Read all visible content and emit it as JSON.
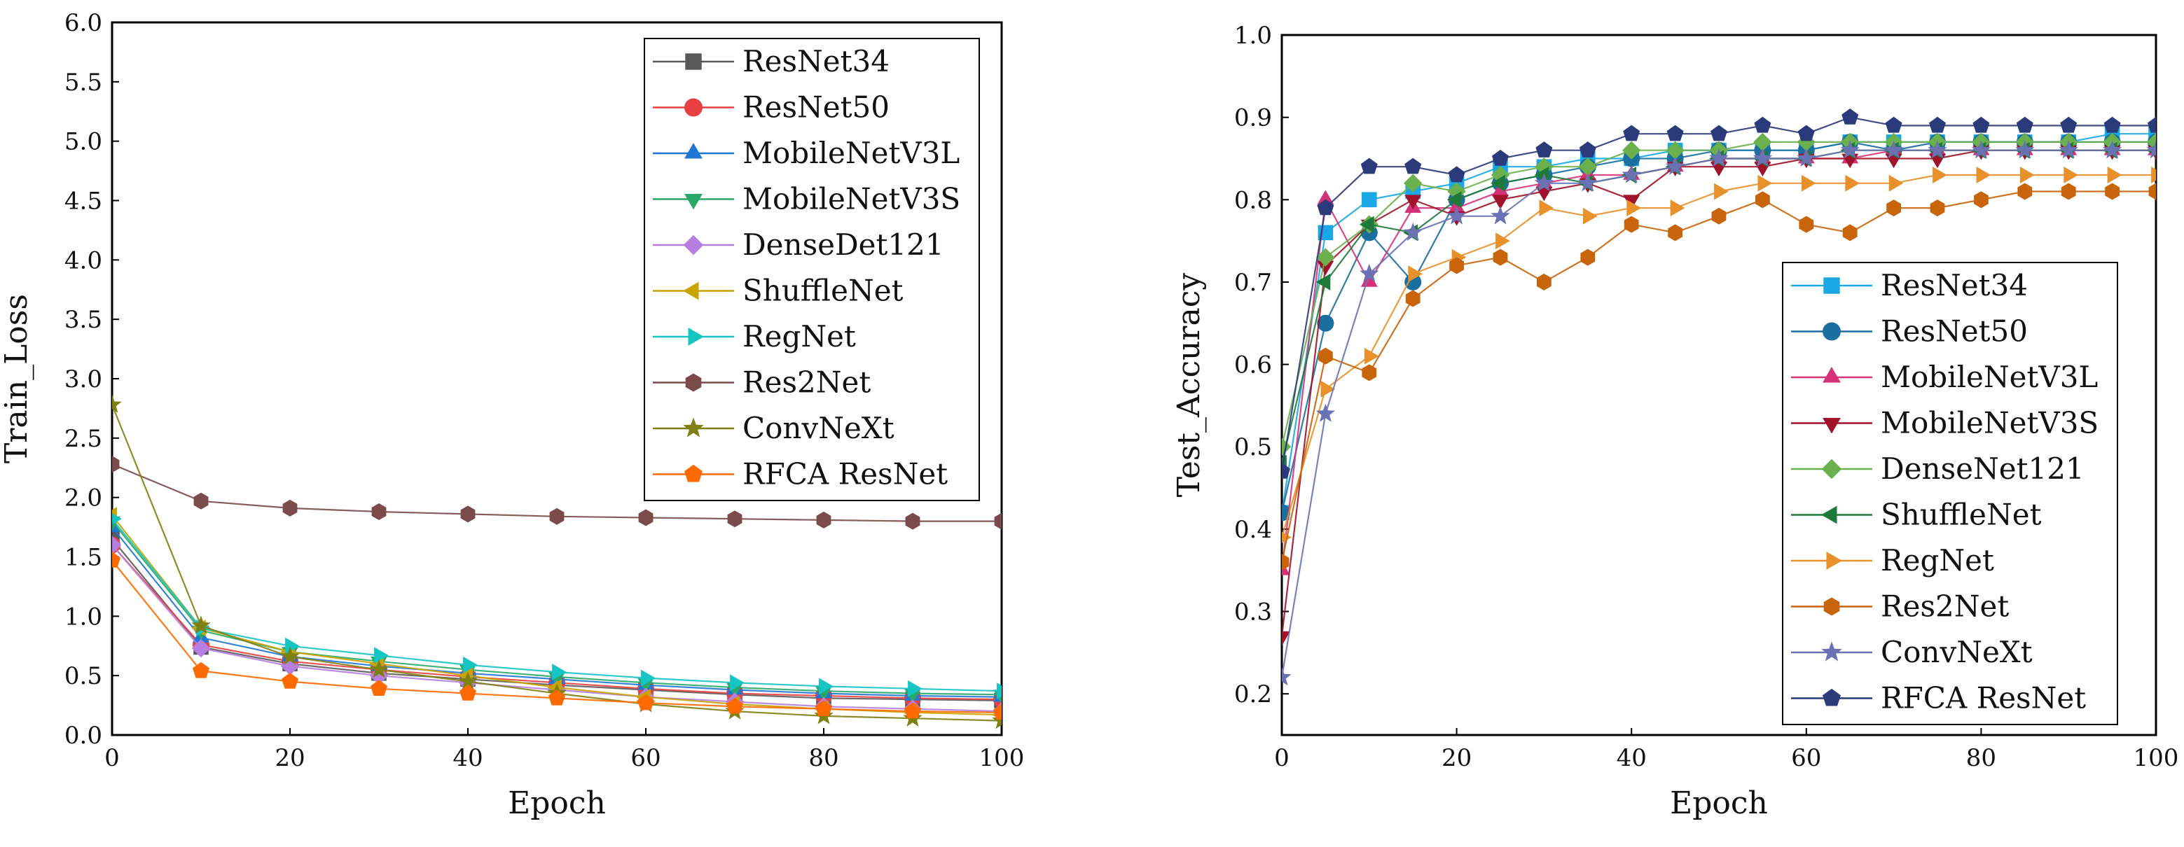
{
  "chart_data": [
    {
      "type": "line",
      "title": "",
      "xlabel": "Epoch",
      "ylabel": "Train_Loss",
      "xlim": [
        0,
        100
      ],
      "ylim": [
        0,
        6
      ],
      "xticks": [
        "0",
        "20",
        "40",
        "60",
        "80",
        "100"
      ],
      "yticks": [
        "0.0",
        "0.5",
        "1.0",
        "1.5",
        "2.0",
        "2.5",
        "3.0",
        "3.5",
        "4.0",
        "4.5",
        "5.0",
        "5.5",
        "6.0"
      ],
      "legend_position": "top-right",
      "x": [
        0,
        10,
        20,
        30,
        40,
        50,
        60,
        70,
        80,
        90,
        100
      ],
      "series": [
        {
          "name": "ResNet34",
          "color": "#595959",
          "marker": "square",
          "values": [
            1.65,
            0.74,
            0.6,
            0.52,
            0.47,
            0.42,
            0.38,
            0.34,
            0.31,
            0.3,
            0.29
          ]
        },
        {
          "name": "ResNet50",
          "color": "#e84040",
          "marker": "circle",
          "values": [
            1.6,
            0.76,
            0.62,
            0.55,
            0.49,
            0.44,
            0.39,
            0.35,
            0.33,
            0.31,
            0.3
          ]
        },
        {
          "name": "MobileNetV3L",
          "color": "#1f77d4",
          "marker": "triangle-up",
          "values": [
            1.75,
            0.82,
            0.66,
            0.58,
            0.52,
            0.47,
            0.42,
            0.38,
            0.35,
            0.33,
            0.32
          ]
        },
        {
          "name": "MobileNetV3S",
          "color": "#2aa86a",
          "marker": "triangle-down",
          "values": [
            1.8,
            0.88,
            0.7,
            0.62,
            0.55,
            0.49,
            0.44,
            0.4,
            0.37,
            0.35,
            0.34
          ]
        },
        {
          "name": "DenseDet121",
          "color": "#b57ee0",
          "marker": "diamond",
          "values": [
            1.6,
            0.73,
            0.58,
            0.5,
            0.44,
            0.38,
            0.32,
            0.28,
            0.24,
            0.22,
            0.2
          ]
        },
        {
          "name": "ShuffleNet",
          "color": "#c9a300",
          "marker": "triangle-left",
          "values": [
            1.85,
            0.9,
            0.7,
            0.6,
            0.5,
            0.4,
            0.32,
            0.26,
            0.22,
            0.19,
            0.17
          ]
        },
        {
          "name": "RegNet",
          "color": "#17c4c4",
          "marker": "triangle-right",
          "values": [
            1.82,
            0.9,
            0.75,
            0.67,
            0.59,
            0.53,
            0.48,
            0.44,
            0.41,
            0.39,
            0.37
          ]
        },
        {
          "name": "Res2Net",
          "color": "#7b4a4a",
          "marker": "hexagon",
          "values": [
            2.28,
            1.97,
            1.91,
            1.88,
            1.86,
            1.84,
            1.83,
            1.82,
            1.81,
            1.8,
            1.8
          ]
        },
        {
          "name": "ConvNeXt",
          "color": "#7f7f12",
          "marker": "star",
          "values": [
            2.78,
            0.92,
            0.66,
            0.55,
            0.45,
            0.35,
            0.26,
            0.2,
            0.16,
            0.14,
            0.12
          ]
        },
        {
          "name": "RFCA ResNet",
          "color": "#ff6a00",
          "marker": "pentagon",
          "values": [
            1.47,
            0.54,
            0.45,
            0.39,
            0.35,
            0.31,
            0.27,
            0.24,
            0.22,
            0.2,
            0.19
          ]
        }
      ]
    },
    {
      "type": "line",
      "title": "",
      "xlabel": "Epoch",
      "ylabel": "Test_Accuracy",
      "xlim": [
        0,
        100
      ],
      "ylim": [
        0.15,
        1.0
      ],
      "xticks": [
        "0",
        "20",
        "40",
        "60",
        "80",
        "100"
      ],
      "yticks": [
        "0.2",
        "0.3",
        "0.4",
        "0.5",
        "0.6",
        "0.7",
        "0.8",
        "0.9",
        "1.0"
      ],
      "legend_position": "lower-right",
      "x": [
        0,
        5,
        10,
        15,
        20,
        25,
        30,
        35,
        40,
        45,
        50,
        55,
        60,
        65,
        70,
        75,
        80,
        85,
        90,
        95,
        100
      ],
      "series": [
        {
          "name": "ResNet34",
          "color": "#1aa7e6",
          "marker": "square",
          "values": [
            0.42,
            0.76,
            0.8,
            0.81,
            0.82,
            0.84,
            0.84,
            0.85,
            0.85,
            0.86,
            0.86,
            0.86,
            0.86,
            0.87,
            0.87,
            0.87,
            0.87,
            0.87,
            0.87,
            0.88,
            0.88
          ]
        },
        {
          "name": "ResNet50",
          "color": "#1a6fa0",
          "marker": "circle",
          "values": [
            0.42,
            0.65,
            0.76,
            0.7,
            0.8,
            0.82,
            0.83,
            0.84,
            0.85,
            0.85,
            0.86,
            0.86,
            0.86,
            0.87,
            0.86,
            0.87,
            0.87,
            0.87,
            0.87,
            0.87,
            0.87
          ]
        },
        {
          "name": "MobileNetV3L",
          "color": "#d6327a",
          "marker": "triangle-up",
          "values": [
            0.35,
            0.8,
            0.7,
            0.79,
            0.79,
            0.81,
            0.82,
            0.83,
            0.83,
            0.84,
            0.85,
            0.85,
            0.85,
            0.85,
            0.86,
            0.86,
            0.86,
            0.86,
            0.86,
            0.86,
            0.86
          ]
        },
        {
          "name": "MobileNetV3S",
          "color": "#a0122a",
          "marker": "triangle-down",
          "values": [
            0.27,
            0.72,
            0.77,
            0.8,
            0.78,
            0.8,
            0.81,
            0.82,
            0.8,
            0.84,
            0.84,
            0.84,
            0.85,
            0.85,
            0.85,
            0.85,
            0.86,
            0.86,
            0.86,
            0.86,
            0.86
          ]
        },
        {
          "name": "DenseNet121",
          "color": "#6ab04c",
          "marker": "diamond",
          "values": [
            0.5,
            0.73,
            0.77,
            0.82,
            0.81,
            0.83,
            0.84,
            0.84,
            0.86,
            0.86,
            0.86,
            0.87,
            0.87,
            0.87,
            0.87,
            0.87,
            0.87,
            0.87,
            0.87,
            0.87,
            0.87
          ]
        },
        {
          "name": "ShuffleNet",
          "color": "#1e7a3a",
          "marker": "triangle-left",
          "values": [
            0.48,
            0.7,
            0.77,
            0.76,
            0.8,
            0.82,
            0.83,
            0.82,
            0.83,
            0.84,
            0.85,
            0.85,
            0.85,
            0.86,
            0.86,
            0.86,
            0.86,
            0.86,
            0.86,
            0.86,
            0.86
          ]
        },
        {
          "name": "RegNet",
          "color": "#e8902a",
          "marker": "triangle-right",
          "values": [
            0.39,
            0.57,
            0.61,
            0.71,
            0.73,
            0.75,
            0.79,
            0.78,
            0.79,
            0.79,
            0.81,
            0.82,
            0.82,
            0.82,
            0.82,
            0.83,
            0.83,
            0.83,
            0.83,
            0.83,
            0.83
          ]
        },
        {
          "name": "Res2Net",
          "color": "#c8640a",
          "marker": "hexagon",
          "values": [
            0.36,
            0.61,
            0.59,
            0.68,
            0.72,
            0.73,
            0.7,
            0.73,
            0.77,
            0.76,
            0.78,
            0.8,
            0.77,
            0.76,
            0.79,
            0.79,
            0.8,
            0.81,
            0.81,
            0.81,
            0.81
          ]
        },
        {
          "name": "ConvNeXt",
          "color": "#6b72b4",
          "marker": "star",
          "values": [
            0.22,
            0.54,
            0.71,
            0.76,
            0.78,
            0.78,
            0.82,
            0.82,
            0.83,
            0.84,
            0.85,
            0.85,
            0.85,
            0.86,
            0.86,
            0.86,
            0.86,
            0.86,
            0.86,
            0.86,
            0.86
          ]
        },
        {
          "name": "RFCA ResNet",
          "color": "#2b3a7a",
          "marker": "pentagon",
          "values": [
            0.47,
            0.79,
            0.84,
            0.84,
            0.83,
            0.85,
            0.86,
            0.86,
            0.88,
            0.88,
            0.88,
            0.89,
            0.88,
            0.9,
            0.89,
            0.89,
            0.89,
            0.89,
            0.89,
            0.89,
            0.89
          ]
        }
      ]
    }
  ]
}
